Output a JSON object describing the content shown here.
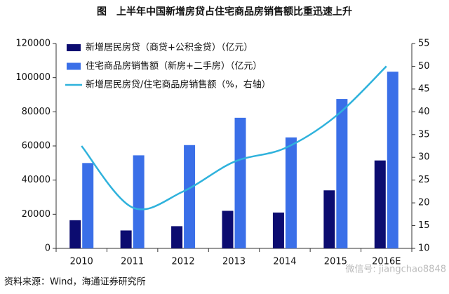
{
  "chart_data": {
    "type": "bar_line",
    "title": "图　上半年中国新增房贷占住宅商品房销售额比重迅速上升",
    "source": "资料来源：Wind，海通证券研究所",
    "watermark": "微信号: jiangchao8848",
    "categories": [
      "2010",
      "2011",
      "2012",
      "2013",
      "2014",
      "2015",
      "2016E"
    ],
    "series": [
      {
        "name": "新增居民房贷（商贷+公积金贷）（亿元）",
        "color": "#0c0c70",
        "kind": "bar",
        "values": [
          16500,
          10500,
          13000,
          22000,
          21000,
          34000,
          51500
        ]
      },
      {
        "name": "住宅商品房销售额（新房+二手房）（亿元）",
        "color": "#3a6fe8",
        "kind": "bar",
        "values": [
          50000,
          54500,
          60500,
          76500,
          65000,
          87500,
          103500
        ]
      },
      {
        "name": "新增居民房贷/住宅商品房销售额（%，右轴）",
        "color": "#2fb2dc",
        "kind": "line",
        "axis": "y2",
        "values": [
          32.5,
          19,
          22.5,
          29,
          32,
          39,
          50
        ]
      }
    ],
    "ylim": [
      0,
      120000
    ],
    "yticks": [
      0,
      20000,
      40000,
      60000,
      80000,
      100000,
      120000
    ],
    "y2lim": [
      10,
      55
    ],
    "y2ticks": [
      10,
      15,
      20,
      25,
      30,
      35,
      40,
      45,
      50,
      55
    ],
    "legend": "upper left"
  }
}
